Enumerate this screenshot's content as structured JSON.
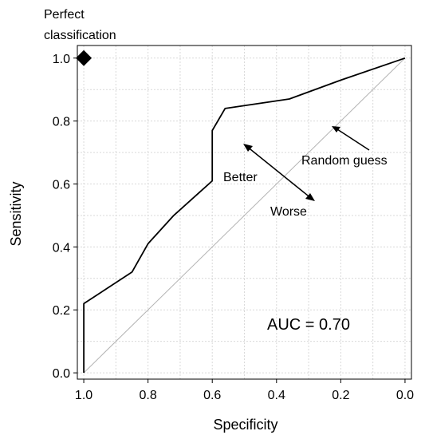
{
  "chart_data": {
    "type": "line",
    "xlabel": "Specificity",
    "ylabel": "Sensitivity",
    "xlim": [
      1.02,
      -0.02
    ],
    "ylim": [
      -0.02,
      1.04
    ],
    "x_reversed": true,
    "grid": true,
    "xticks": [
      1.0,
      0.8,
      0.6,
      0.4,
      0.2,
      0.0
    ],
    "xtick_labels": [
      "1.0",
      "0.8",
      "0.6",
      "0.4",
      "0.2",
      "0.0"
    ],
    "yticks": [
      0.0,
      0.2,
      0.4,
      0.6,
      0.8,
      1.0
    ],
    "ytick_labels": [
      "0.0",
      "0.2",
      "0.4",
      "0.6",
      "0.8",
      "1.0"
    ],
    "series": [
      {
        "x": [
          1.0,
          1.0,
          0.85,
          0.8,
          0.72,
          0.6,
          0.6,
          0.56,
          0.36,
          0.2,
          0.0
        ],
        "y": [
          0.0,
          0.22,
          0.32,
          0.41,
          0.5,
          0.61,
          0.77,
          0.84,
          0.87,
          0.93,
          1.0
        ],
        "color": "#000000"
      }
    ],
    "reference_line": {
      "x": [
        1.0,
        0.0
      ],
      "y": [
        0.0,
        1.0
      ],
      "color": "#b3b3b3"
    },
    "perfect_point": {
      "x": 1.0,
      "y": 1.0
    },
    "annotations": {
      "perfect_line1": "Perfect",
      "perfect_line2": "classification",
      "random": "Random guess",
      "better": "Better",
      "worse": "Worse",
      "auc": "AUC = 0.70"
    }
  }
}
